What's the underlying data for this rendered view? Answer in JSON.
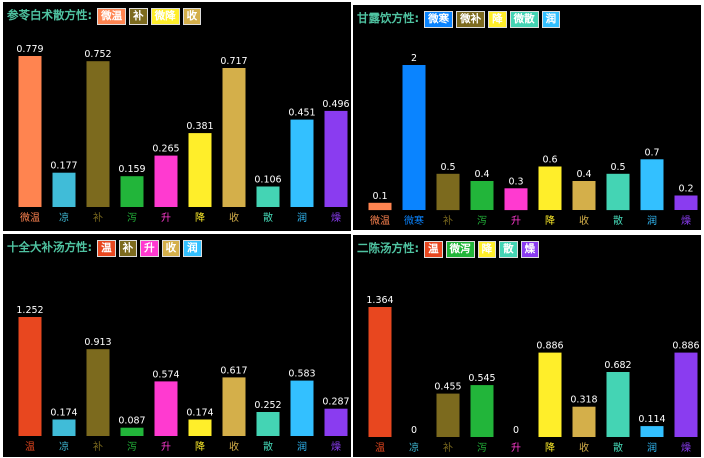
{
  "colors": {
    "温": "#e8471f",
    "微温": "#ff8450",
    "凉": "#40bcd8",
    "微寒": "#0a84ff",
    "补": "#7c6a1e",
    "微补": "#7c6a1e",
    "泻": "#22b53a",
    "微泻": "#22b53a",
    "升": "#ff3ad0",
    "降": "#ffee2a",
    "微降": "#ffee2a",
    "收": "#d4af4a",
    "散": "#44d4b4",
    "微散": "#44d4b4",
    "润": "#33c0ff",
    "燥": "#8a3cf0"
  },
  "chart_data": [
    {
      "type": "bar",
      "title": "参苓白术散方性:",
      "tags": [
        "微温",
        "补",
        "微降",
        "收"
      ],
      "categories": [
        "微温",
        "凉",
        "补",
        "泻",
        "升",
        "降",
        "收",
        "散",
        "润",
        "燥"
      ],
      "values": [
        0.779,
        0.177,
        0.752,
        0.159,
        0.265,
        0.381,
        0.717,
        0.106,
        0.451,
        0.496
      ],
      "labels": [
        "0.779",
        "0.177",
        "0.752",
        "0.159",
        "0.265",
        "0.381",
        "0.717",
        "0.106",
        "0.451",
        "0.496"
      ]
    },
    {
      "type": "bar",
      "title": "甘露饮方性:",
      "tags": [
        "微寒",
        "微补",
        "降",
        "微散",
        "润"
      ],
      "categories": [
        "微温",
        "微寒",
        "补",
        "泻",
        "升",
        "降",
        "收",
        "散",
        "润",
        "燥"
      ],
      "values": [
        0.1,
        2,
        0.5,
        0.4,
        0.3,
        0.6,
        0.4,
        0.5,
        0.7,
        0.2
      ],
      "labels": [
        "0.1",
        "2",
        "0.5",
        "0.4",
        "0.3",
        "0.6",
        "0.4",
        "0.5",
        "0.7",
        "0.2"
      ]
    },
    {
      "type": "bar",
      "title": "十全大补汤方性:",
      "tags": [
        "温",
        "补",
        "升",
        "收",
        "润"
      ],
      "categories": [
        "温",
        "凉",
        "补",
        "泻",
        "升",
        "降",
        "收",
        "散",
        "润",
        "燥"
      ],
      "values": [
        1.252,
        0.174,
        0.913,
        0.087,
        0.574,
        0.174,
        0.617,
        0.252,
        0.583,
        0.287
      ],
      "labels": [
        "1.252",
        "0.174",
        "0.913",
        "0.087",
        "0.574",
        "0.174",
        "0.617",
        "0.252",
        "0.583",
        "0.287"
      ]
    },
    {
      "type": "bar",
      "title": "二陈汤方性:",
      "tags": [
        "温",
        "微泻",
        "降",
        "散",
        "燥"
      ],
      "categories": [
        "温",
        "凉",
        "补",
        "泻",
        "升",
        "降",
        "收",
        "散",
        "润",
        "燥"
      ],
      "values": [
        1.364,
        0,
        0.455,
        0.545,
        0,
        0.886,
        0.318,
        0.682,
        0.114,
        0.886
      ],
      "labels": [
        "1.364",
        "0",
        "0.455",
        "0.545",
        "0",
        "0.886",
        "0.318",
        "0.682",
        "0.114",
        "0.886"
      ]
    }
  ]
}
